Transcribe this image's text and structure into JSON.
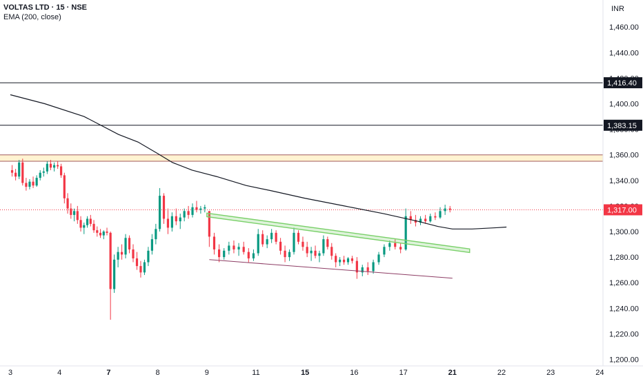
{
  "header": {
    "title": "VOLTAS LTD · 15 · NSE",
    "indicator": "EMA (200, close)"
  },
  "chart_data": {
    "type": "candlestick",
    "currency": "INR",
    "ylim": [
      1196,
      1472
    ],
    "y_ticks": [
      1200,
      1220,
      1240,
      1260,
      1280,
      1300,
      1320,
      1340,
      1360,
      1380,
      1400,
      1420,
      1440,
      1460
    ],
    "y_tick_labels": [
      "1,200.00",
      "1,220.00",
      "1,240.00",
      "1,260.00",
      "1,280.00",
      "1,300.00",
      "1,320.00",
      "1,340.00",
      "1,360.00",
      "1,380.00",
      "1,400.00",
      "1,420.00",
      "1,440.00",
      "1,460.00"
    ],
    "x_ticks": [
      {
        "label": "3",
        "bold": false
      },
      {
        "label": "4",
        "bold": false
      },
      {
        "label": "7",
        "bold": true
      },
      {
        "label": "8",
        "bold": false
      },
      {
        "label": "9",
        "bold": false
      },
      {
        "label": "11",
        "bold": false
      },
      {
        "label": "15",
        "bold": true
      },
      {
        "label": "16",
        "bold": false
      },
      {
        "label": "17",
        "bold": false
      },
      {
        "label": "21",
        "bold": true
      },
      {
        "label": "22",
        "bold": false
      },
      {
        "label": "23",
        "bold": false
      },
      {
        "label": "24",
        "bold": false
      }
    ],
    "horizontal_lines": [
      {
        "value": 1416.4,
        "label": "1,416.40",
        "color": "#131722"
      },
      {
        "value": 1383.15,
        "label": "1,383.15",
        "color": "#131722"
      }
    ],
    "supply_zone": {
      "from": 1355,
      "to": 1360,
      "fill": "#fff3d1",
      "border": "#a05a5a"
    },
    "last_price": {
      "value": 1317.0,
      "label": "1,317.00",
      "color": "#f23645"
    },
    "ema_200": [
      [
        0,
        1407
      ],
      [
        0.7,
        1400
      ],
      [
        1.5,
        1390
      ],
      [
        2.2,
        1376
      ],
      [
        2.6,
        1370
      ],
      [
        3.0,
        1361
      ],
      [
        3.3,
        1354
      ],
      [
        3.7,
        1348
      ],
      [
        4.2,
        1343
      ],
      [
        4.8,
        1336
      ],
      [
        5.3,
        1332
      ],
      [
        6.0,
        1326
      ],
      [
        6.8,
        1320
      ],
      [
        7.6,
        1314
      ],
      [
        8.3,
        1308
      ],
      [
        8.7,
        1304
      ],
      [
        9.0,
        1302
      ],
      [
        9.4,
        1302
      ],
      [
        9.9,
        1303
      ],
      [
        10.1,
        1303.5
      ]
    ],
    "channel_upper": {
      "from": [
        4.0,
        1313
      ],
      "to": [
        9.35,
        1285
      ],
      "color": "#7ad06a"
    },
    "channel_lower": {
      "from": [
        4.05,
        1278
      ],
      "to": [
        9.0,
        1263.5
      ],
      "color": "#8c3b63"
    },
    "candles": [
      [
        1348,
        1352,
        1343,
        1346
      ],
      [
        1346,
        1349,
        1340,
        1343
      ],
      [
        1343,
        1356,
        1341,
        1354
      ],
      [
        1354,
        1357,
        1336,
        1338
      ],
      [
        1338,
        1342,
        1332,
        1335
      ],
      [
        1335,
        1341,
        1333,
        1339
      ],
      [
        1339,
        1343,
        1334,
        1336
      ],
      [
        1336,
        1344,
        1335,
        1342
      ],
      [
        1342,
        1348,
        1340,
        1346
      ],
      [
        1346,
        1350,
        1343,
        1347
      ],
      [
        1347,
        1355,
        1345,
        1353
      ],
      [
        1353,
        1356,
        1348,
        1350
      ],
      [
        1350,
        1354,
        1347,
        1352
      ],
      [
        1352,
        1355,
        1349,
        1351
      ],
      [
        1351,
        1353,
        1342,
        1344
      ],
      [
        1344,
        1346,
        1322,
        1326
      ],
      [
        1326,
        1330,
        1314,
        1318
      ],
      [
        1318,
        1322,
        1310,
        1313
      ],
      [
        1313,
        1318,
        1308,
        1316
      ],
      [
        1316,
        1320,
        1306,
        1309
      ],
      [
        1309,
        1312,
        1300,
        1303
      ],
      [
        1303,
        1307,
        1298,
        1305
      ],
      [
        1305,
        1312,
        1303,
        1310
      ],
      [
        1310,
        1313,
        1304,
        1306
      ],
      [
        1306,
        1309,
        1299,
        1301
      ],
      [
        1301,
        1304,
        1296,
        1299
      ],
      [
        1299,
        1302,
        1295,
        1297
      ],
      [
        1297,
        1301,
        1294,
        1300
      ],
      [
        1300,
        1303,
        1297,
        1299
      ],
      [
        1299,
        1300,
        1231,
        1255
      ],
      [
        1255,
        1282,
        1252,
        1278
      ],
      [
        1278,
        1288,
        1272,
        1284
      ],
      [
        1284,
        1290,
        1278,
        1282
      ],
      [
        1282,
        1298,
        1279,
        1295
      ],
      [
        1295,
        1297,
        1283,
        1286
      ],
      [
        1286,
        1290,
        1276,
        1279
      ],
      [
        1279,
        1284,
        1270,
        1273
      ],
      [
        1273,
        1277,
        1264,
        1268
      ],
      [
        1268,
        1278,
        1266,
        1276
      ],
      [
        1276,
        1288,
        1273,
        1285
      ],
      [
        1285,
        1298,
        1282,
        1294
      ],
      [
        1294,
        1306,
        1290,
        1302
      ],
      [
        1302,
        1334,
        1300,
        1328
      ],
      [
        1328,
        1330,
        1306,
        1310
      ],
      [
        1310,
        1318,
        1298,
        1303
      ],
      [
        1303,
        1315,
        1300,
        1312
      ],
      [
        1312,
        1318,
        1305,
        1308
      ],
      [
        1308,
        1314,
        1302,
        1311
      ],
      [
        1311,
        1318,
        1308,
        1316
      ],
      [
        1316,
        1320,
        1310,
        1313
      ],
      [
        1313,
        1322,
        1311,
        1319
      ],
      [
        1319,
        1324,
        1315,
        1317
      ],
      [
        1317,
        1320,
        1314,
        1318
      ],
      [
        1318,
        1321,
        1315,
        1319
      ],
      [
        1316,
        1316,
        1288,
        1296
      ],
      [
        1296,
        1299,
        1282,
        1286
      ],
      [
        1286,
        1290,
        1276,
        1280
      ],
      [
        1280,
        1287,
        1278,
        1285
      ],
      [
        1285,
        1292,
        1282,
        1289
      ],
      [
        1289,
        1293,
        1283,
        1286
      ],
      [
        1286,
        1291,
        1281,
        1288
      ],
      [
        1288,
        1292,
        1282,
        1284
      ],
      [
        1284,
        1287,
        1276,
        1279
      ],
      [
        1279,
        1286,
        1277,
        1283
      ],
      [
        1283,
        1302,
        1281,
        1298
      ],
      [
        1298,
        1301,
        1288,
        1290
      ],
      [
        1290,
        1297,
        1287,
        1294
      ],
      [
        1294,
        1302,
        1291,
        1299
      ],
      [
        1299,
        1301,
        1290,
        1292
      ],
      [
        1292,
        1295,
        1282,
        1285
      ],
      [
        1285,
        1289,
        1276,
        1280
      ],
      [
        1280,
        1286,
        1277,
        1284
      ],
      [
        1284,
        1303,
        1282,
        1299
      ],
      [
        1299,
        1301,
        1290,
        1292
      ],
      [
        1292,
        1296,
        1285,
        1288
      ],
      [
        1288,
        1292,
        1280,
        1283
      ],
      [
        1283,
        1288,
        1277,
        1285
      ],
      [
        1285,
        1289,
        1279,
        1281
      ],
      [
        1281,
        1285,
        1276,
        1283
      ],
      [
        1283,
        1297,
        1281,
        1294
      ],
      [
        1294,
        1296,
        1286,
        1288
      ],
      [
        1288,
        1291,
        1278,
        1281
      ],
      [
        1281,
        1283,
        1272,
        1276
      ],
      [
        1276,
        1280,
        1273,
        1278
      ],
      [
        1278,
        1281,
        1274,
        1276
      ],
      [
        1276,
        1280,
        1274,
        1279
      ],
      [
        1279,
        1281,
        1275,
        1277
      ],
      [
        1277,
        1280,
        1263,
        1268
      ],
      [
        1268,
        1274,
        1265,
        1272
      ],
      [
        1272,
        1276,
        1266,
        1269
      ],
      [
        1269,
        1278,
        1267,
        1276
      ],
      [
        1276,
        1284,
        1274,
        1282
      ],
      [
        1282,
        1290,
        1280,
        1288
      ],
      [
        1288,
        1293,
        1285,
        1291
      ],
      [
        1291,
        1294,
        1286,
        1288
      ],
      [
        1288,
        1291,
        1283,
        1286
      ],
      [
        1286,
        1318,
        1285,
        1312
      ],
      [
        1312,
        1316,
        1306,
        1309
      ],
      [
        1309,
        1313,
        1304,
        1307
      ],
      [
        1307,
        1312,
        1305,
        1310
      ],
      [
        1310,
        1313,
        1306,
        1308
      ],
      [
        1308,
        1314,
        1307,
        1312
      ],
      [
        1312,
        1315,
        1309,
        1311
      ],
      [
        1311,
        1319,
        1310,
        1316
      ],
      [
        1316,
        1321,
        1313,
        1318
      ],
      [
        1318,
        1320,
        1315,
        1317
      ]
    ]
  }
}
